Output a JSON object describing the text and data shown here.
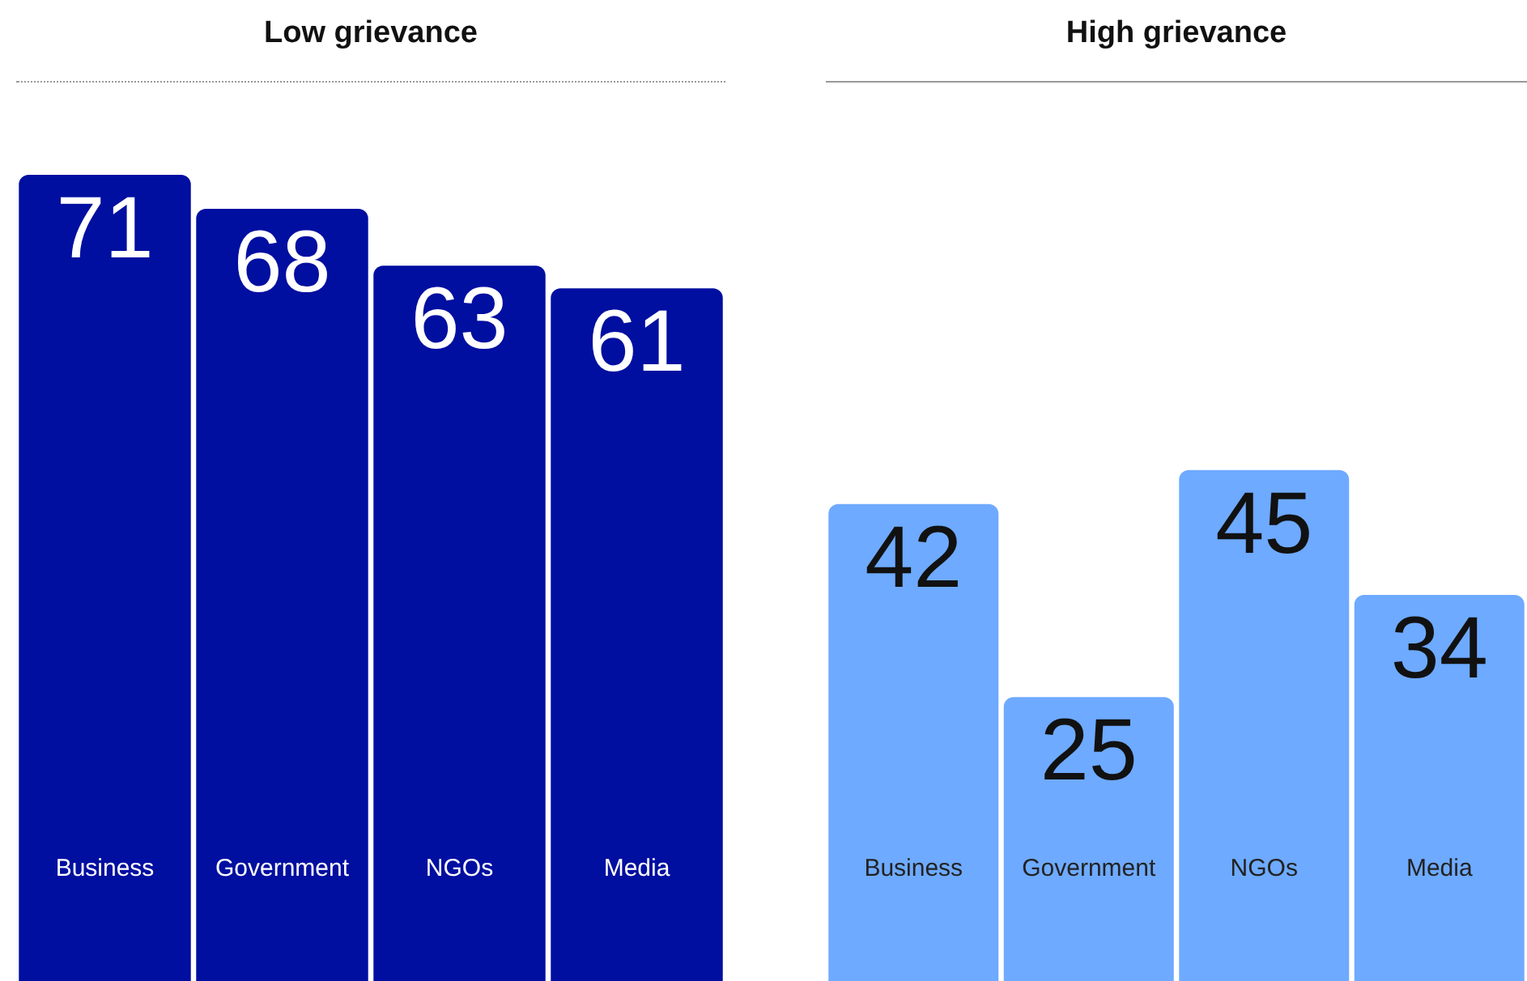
{
  "chart_data": [
    {
      "type": "bar",
      "title": "Low grievance",
      "categories": [
        "Business",
        "Government",
        "NGOs",
        "Media"
      ],
      "values": [
        71,
        68,
        63,
        61
      ],
      "color": "#000fa0",
      "data_labels": true
    },
    {
      "type": "bar",
      "title": "High grievance",
      "categories": [
        "Business",
        "Government",
        "NGOs",
        "Media"
      ],
      "values": [
        42,
        25,
        45,
        34
      ],
      "color": "#6eaaff",
      "data_labels": true
    }
  ]
}
